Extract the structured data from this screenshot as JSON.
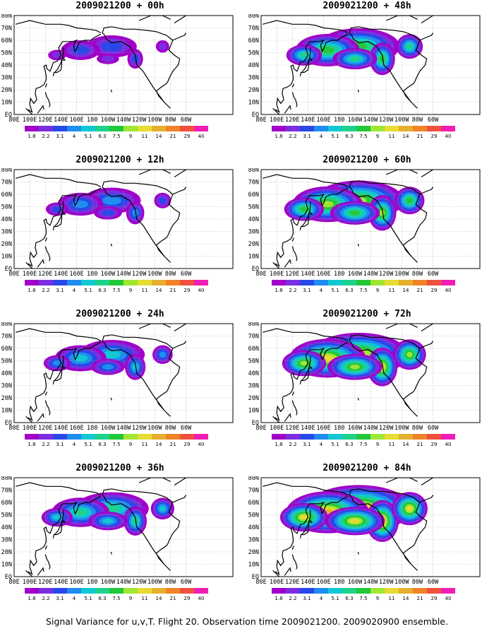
{
  "footer": "Signal Variance for u,v,T. Flight 20. Observation time 2009021200. 2009020900 ensemble.",
  "lon_labels": [
    "80E",
    "100E",
    "120E",
    "140E",
    "160E",
    "180",
    "160W",
    "140W",
    "120W",
    "100W",
    "80W",
    "60W"
  ],
  "lat_labels": [
    "EQ",
    "10N",
    "20N",
    "30N",
    "40N",
    "50N",
    "60N",
    "70N",
    "80N"
  ],
  "colorbar": {
    "labels": [
      "1.8",
      "2.2",
      "3.1",
      "4",
      "5.1",
      "6.3",
      "7.5",
      "9",
      "11",
      "14",
      "21",
      "29",
      "40"
    ],
    "colors": [
      "#a000c8",
      "#7a2ee0",
      "#2848e8",
      "#1f8cf0",
      "#10c8d2",
      "#1fd28c",
      "#22c838",
      "#a0e632",
      "#e6dc32",
      "#e6af2d",
      "#f08228",
      "#f0503c",
      "#f01eb4"
    ]
  },
  "panels": [
    {
      "title": "2009021200 + 00h",
      "level": 0
    },
    {
      "title": "2009021200 + 12h",
      "level": 1
    },
    {
      "title": "2009021200 + 24h",
      "level": 2
    },
    {
      "title": "2009021200 + 36h",
      "level": 3
    },
    {
      "title": "2009021200 + 48h",
      "level": 4
    },
    {
      "title": "2009021200 + 60h",
      "level": 5
    },
    {
      "title": "2009021200 + 72h",
      "level": 6
    },
    {
      "title": "2009021200 + 84h",
      "level": 7
    }
  ]
}
